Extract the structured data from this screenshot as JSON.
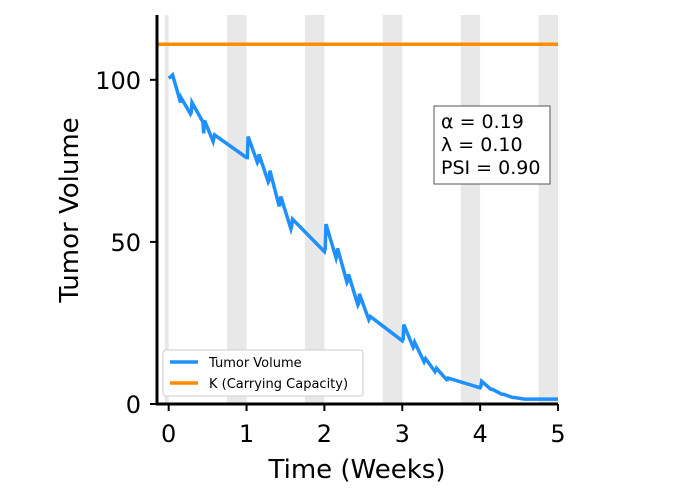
{
  "chart_data": {
    "type": "line",
    "xlabel": "Time (Weeks)",
    "ylabel": "Tumor Volume",
    "xlim": [
      -0.15,
      5.0
    ],
    "ylim": [
      0,
      120
    ],
    "xticks": [
      "0",
      "1",
      "2",
      "3",
      "4",
      "5"
    ],
    "yticks": [
      "0",
      "50",
      "100"
    ],
    "treatment_bands": [
      [
        -0.05,
        0.0
      ],
      [
        0.75,
        1.0
      ],
      [
        1.75,
        2.0
      ],
      [
        2.75,
        3.0
      ],
      [
        3.75,
        4.0
      ],
      [
        4.75,
        5.0
      ]
    ],
    "band_color": "#e8e8e8",
    "grid": false,
    "legend_position": "lower-left",
    "series": [
      {
        "name": "Tumor Volume",
        "color": "#1e90ff",
        "x": [
          0.0,
          0.03,
          0.05,
          0.14,
          0.15,
          0.16,
          0.28,
          0.29,
          0.3,
          0.44,
          0.45,
          0.46,
          0.57,
          0.58,
          0.59,
          1.0,
          1.01,
          1.02,
          1.14,
          1.15,
          1.16,
          1.28,
          1.29,
          1.3,
          1.42,
          1.43,
          1.44,
          1.57,
          1.58,
          1.59,
          2.0,
          2.01,
          2.02,
          2.15,
          2.16,
          2.17,
          2.29,
          2.3,
          2.31,
          2.43,
          2.44,
          2.45,
          2.57,
          2.58,
          2.59,
          3.0,
          3.01,
          3.02,
          3.14,
          3.15,
          3.16,
          3.28,
          3.29,
          3.3,
          3.42,
          3.43,
          3.44,
          3.57,
          3.58,
          3.59,
          4.0,
          4.01,
          4.02,
          4.14,
          4.15,
          4.16,
          4.28,
          4.29,
          4.3,
          4.42,
          4.43,
          4.44,
          4.57,
          4.58,
          4.59,
          5.0
        ],
        "y": [
          100.5,
          101,
          101.5,
          94,
          93,
          94.5,
          89.5,
          90,
          93,
          87,
          83.5,
          87.5,
          81,
          82,
          83,
          76,
          76,
          82.5,
          74.5,
          75,
          77,
          68.5,
          69,
          72,
          61,
          62,
          64,
          54,
          55,
          57,
          47,
          48,
          55.5,
          45,
          46,
          48,
          37.5,
          38,
          40,
          30.5,
          31,
          34,
          26,
          26.5,
          27,
          19.5,
          20,
          24.5,
          17.5,
          18,
          19,
          13,
          13.5,
          14,
          10,
          10.5,
          11,
          7.5,
          7.5,
          8,
          5,
          5.5,
          7,
          4.5,
          4.5,
          4.5,
          3,
          3,
          3,
          2,
          2,
          2,
          1.5,
          1.5,
          1.5,
          1.5
        ]
      },
      {
        "name": "K (Carrying Capacity)",
        "color": "#ff8c00",
        "x": [
          -0.15,
          5.0
        ],
        "y": [
          111,
          111
        ]
      }
    ],
    "annotation": {
      "lines": [
        "α = 0.19",
        "λ = 0.10",
        "PSI = 0.90"
      ]
    }
  }
}
